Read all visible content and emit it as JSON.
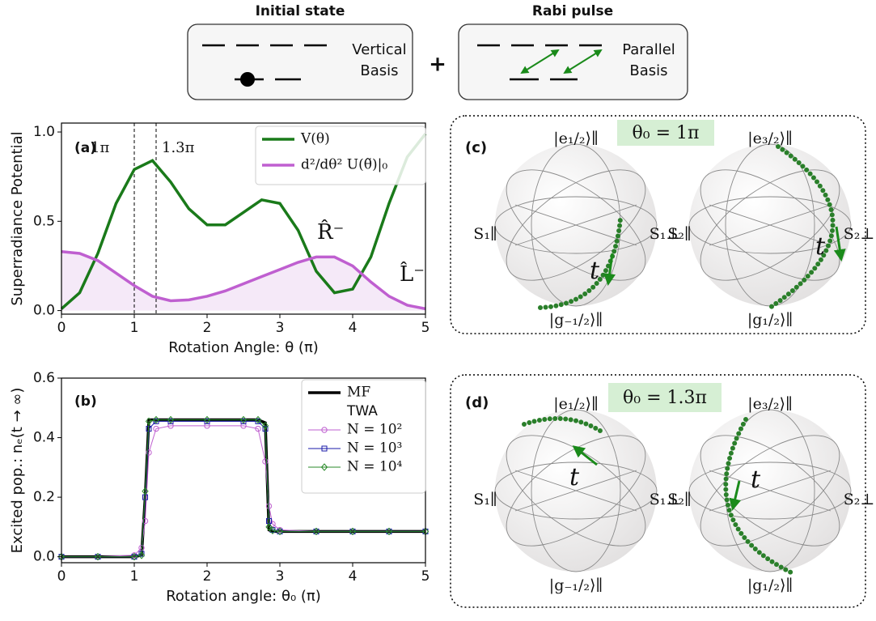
{
  "diagram": {
    "initial": {
      "title": "Initial state",
      "label": [
        "Vertical",
        "Basis"
      ]
    },
    "plus": "+",
    "rabi": {
      "title": "Rabi pulse",
      "label": [
        "Parallel",
        "Basis"
      ]
    }
  },
  "chart_data": [
    {
      "type": "line",
      "xlabel": "Rotation Angle: θ (π)",
      "ylabel": "Superradiance Potential",
      "x": [
        0,
        0.25,
        0.5,
        0.75,
        1,
        1.25,
        1.5,
        1.75,
        2,
        2.25,
        2.5,
        2.75,
        3,
        3.25,
        3.5,
        3.75,
        4,
        4.25,
        4.5,
        4.75,
        5
      ],
      "series": [
        {
          "name": "V(θ)",
          "color": "#1a7a1a",
          "values": [
            0.01,
            0.1,
            0.32,
            0.6,
            0.79,
            0.84,
            0.72,
            0.57,
            0.48,
            0.48,
            0.55,
            0.62,
            0.6,
            0.45,
            0.22,
            0.1,
            0.12,
            0.3,
            0.6,
            0.86,
            0.99
          ]
        },
        {
          "name": "d²/dθ² U(θ̃)|₀",
          "color": "#bf5fd0",
          "fill_color": "#f5e9f8",
          "values": [
            0.33,
            0.32,
            0.28,
            0.21,
            0.14,
            0.08,
            0.055,
            0.06,
            0.08,
            0.11,
            0.15,
            0.19,
            0.23,
            0.27,
            0.3,
            0.3,
            0.25,
            0.16,
            0.08,
            0.03,
            0.01
          ]
        }
      ],
      "vlines": [
        1,
        1.3
      ],
      "annotations": [
        "(a)",
        "1π",
        "1.3π",
        "R̂⁻",
        "L̂⁻"
      ],
      "xlim": [
        0,
        5
      ],
      "xticks": [
        0,
        1,
        2,
        3,
        4,
        5
      ],
      "ylim": [
        -0.02,
        1.05
      ],
      "yticks": [
        {
          "value": 0,
          "label": "0.0"
        },
        {
          "value": 0.5,
          "label": "0.5"
        },
        {
          "value": 1,
          "label": "1.0"
        }
      ],
      "legend": "upper right"
    },
    {
      "type": "line",
      "xlabel": "Rotation angle: θ₀ (π)",
      "ylabel": "Excited pop.: nₑ(t → ∞)",
      "x": [
        0,
        0.5,
        1,
        1.1,
        1.15,
        1.2,
        1.3,
        1.5,
        2,
        2.5,
        2.7,
        2.8,
        2.85,
        2.9,
        3,
        3.5,
        4,
        4.5,
        5
      ],
      "series": [
        {
          "name": "MF",
          "color": "#000000",
          "values": [
            0,
            0,
            0,
            0.005,
            0.2,
            0.46,
            0.46,
            0.46,
            0.46,
            0.46,
            0.46,
            0.45,
            0.09,
            0.085,
            0.085,
            0.085,
            0.085,
            0.085,
            0.085
          ]
        },
        {
          "name": "N = 10²",
          "color": "#bf5fd0",
          "marker": "circle",
          "values": [
            0,
            0,
            0.005,
            0.03,
            0.12,
            0.35,
            0.43,
            0.44,
            0.44,
            0.44,
            0.43,
            0.32,
            0.17,
            0.11,
            0.09,
            0.085,
            0.085,
            0.085,
            0.085
          ]
        },
        {
          "name": "N = 10³",
          "color": "#1a1aa8",
          "marker": "square",
          "values": [
            0,
            0,
            0,
            0.01,
            0.2,
            0.43,
            0.455,
            0.455,
            0.455,
            0.455,
            0.455,
            0.43,
            0.12,
            0.09,
            0.085,
            0.085,
            0.085,
            0.085,
            0.085
          ]
        },
        {
          "name": "N = 10⁴",
          "color": "#2a8a2a",
          "marker": "diamond",
          "values": [
            0,
            0,
            0,
            0.005,
            0.22,
            0.455,
            0.46,
            0.46,
            0.46,
            0.46,
            0.46,
            0.44,
            0.1,
            0.088,
            0.085,
            0.085,
            0.085,
            0.085,
            0.085
          ]
        }
      ],
      "legend_subtitle": "TWA",
      "annotations": [
        "(b)"
      ],
      "xlim": [
        0,
        5
      ],
      "xticks": [
        0,
        1,
        2,
        3,
        4,
        5
      ],
      "ylim": [
        -0.02,
        0.6
      ],
      "yticks": [
        {
          "value": 0,
          "label": "0.0"
        },
        {
          "value": 0.2,
          "label": "0.2"
        },
        {
          "value": 0.4,
          "label": "0.4"
        },
        {
          "value": 0.6,
          "label": "0.6"
        }
      ],
      "legend": "upper right"
    }
  ],
  "bloch_panels": [
    {
      "panel": "(c)",
      "theta": "θ₀ = 1π",
      "spheres": [
        {
          "top": "|e₁/₂⟩∥",
          "bottom": "|g₋₁/₂⟩∥",
          "left": "S₁∥",
          "right": "S₁⊥",
          "time": "t"
        },
        {
          "top": "|e₃/₂⟩∥",
          "bottom": "|g₁/₂⟩∥",
          "left": "S₂∥",
          "right": "S₂⊥",
          "time": "t"
        }
      ]
    },
    {
      "panel": "(d)",
      "theta": "θ₀ = 1.3π",
      "spheres": [
        {
          "top": "|e₁/₂⟩∥",
          "bottom": "|g₋₁/₂⟩∥",
          "left": "S₁∥",
          "right": "S₁⊥",
          "time": "t"
        },
        {
          "top": "|e₃/₂⟩∥",
          "bottom": "|g₁/₂⟩∥",
          "left": "S₂∥",
          "right": "S₂⊥",
          "time": "t"
        }
      ]
    }
  ]
}
